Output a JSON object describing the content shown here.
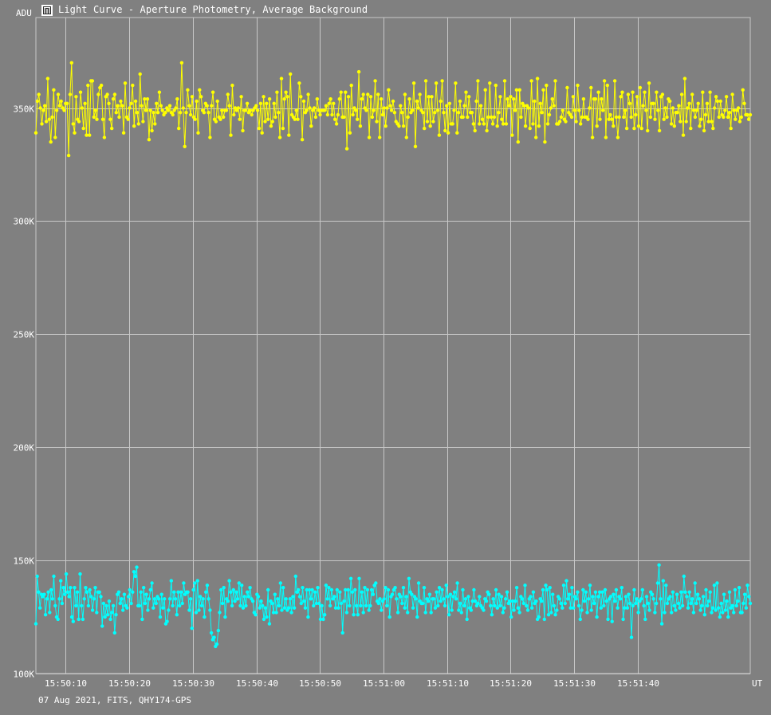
{
  "window": {
    "title": "Light Curve - Aperture Photometry, Average Background",
    "icon": "light-curve-app-icon"
  },
  "footer": {
    "info": "07 Aug 2021, FITS, QHY174-GPS"
  },
  "colors": {
    "background": "#808080",
    "grid": "#c8c8c8",
    "text": "#ffffff",
    "series_target": "#ffff00",
    "series_comparison": "#00ffff"
  },
  "chart_data": {
    "type": "line",
    "ylabel": "ADU",
    "xlabel": "UT",
    "ylim": [
      100000,
      390000
    ],
    "y_ticks": [
      {
        "value": 100000,
        "label": "100K"
      },
      {
        "value": 150000,
        "label": "150K"
      },
      {
        "value": 200000,
        "label": "200K"
      },
      {
        "value": 250000,
        "label": "250K"
      },
      {
        "value": 300000,
        "label": "300K"
      },
      {
        "value": 350000,
        "label": "350K"
      }
    ],
    "xlim": [
      "15:50:05.3",
      "15:51:57.7"
    ],
    "x_ticks": [
      "15:50:10",
      "15:50:20",
      "15:50:30",
      "15:50:40",
      "15:50:50",
      "15:51:00",
      "15:51:10",
      "15:51:20",
      "15:51:30",
      "15:51:40"
    ],
    "grid": true,
    "markers": true,
    "series": [
      {
        "color": "#ffff00",
        "x_start": "15:50:05.3",
        "x_end": "15:51:57.7",
        "values": [
          339000,
          353000,
          356000,
          350000,
          343000,
          349000,
          351000,
          344000,
          363000,
          345000,
          335000,
          346000,
          358000,
          337000,
          349000,
          356000,
          351000,
          353000,
          350000,
          349000,
          352000,
          352000,
          329000,
          356000,
          370000,
          343000,
          339000,
          355000,
          345000,
          344000,
          357000,
          350000,
          341000,
          352000,
          338000,
          360000,
          338000,
          362000,
          362000,
          346000,
          349000,
          345000,
          356000,
          359000,
          360000,
          345000,
          337000,
          355000,
          356000,
          352000,
          345000,
          341000,
          354000,
          356000,
          348000,
          351000,
          346000,
          353000,
          351000,
          339000,
          361000,
          346000,
          345000,
          350000,
          352000,
          360000,
          342000,
          353000,
          348000,
          343000,
          365000,
          351000,
          344000,
          354000,
          349000,
          354000,
          336000,
          349000,
          340000,
          348000,
          343000,
          352000,
          348000,
          357000,
          351000,
          349000,
          347000,
          348000,
          350000,
          349000,
          351000,
          348000,
          347000,
          349000,
          350000,
          354000,
          341000,
          348000,
          370000,
          350000,
          333000,
          348000,
          358000,
          351000,
          347000,
          355000,
          346000,
          345000,
          353000,
          339000,
          358000,
          355000,
          349000,
          348000,
          352000,
          351000,
          348000,
          337000,
          351000,
          357000,
          345000,
          344000,
          353000,
          346000,
          345000,
          349000,
          346000,
          349000,
          349000,
          356000,
          351000,
          338000,
          360000,
          347000,
          350000,
          349000,
          350000,
          345000,
          355000,
          340000,
          349000,
          349000,
          352000,
          348000,
          349000,
          347000,
          349000,
          350000,
          351000,
          349000,
          341000,
          352000,
          339000,
          355000,
          344000,
          352000,
          345000,
          354000,
          342000,
          344000,
          352000,
          346000,
          357000,
          348000,
          337000,
          363000,
          341000,
          354000,
          357000,
          355000,
          338000,
          365000,
          347000,
          346000,
          345000,
          349000,
          345000,
          361000,
          355000,
          336000,
          353000,
          348000,
          349000,
          356000,
          350000,
          342000,
          349000,
          350000,
          346000,
          354000,
          349000,
          347000,
          349000,
          349000,
          349000,
          351000,
          347000,
          352000,
          354000,
          347000,
          352000,
          345000,
          343000,
          347000,
          354000,
          357000,
          346000,
          346000,
          357000,
          332000,
          355000,
          339000,
          360000,
          347000,
          350000,
          349000,
          345000,
          366000,
          342000,
          354000,
          356000,
          350000,
          349000,
          356000,
          337000,
          355000,
          346000,
          349000,
          362000,
          344000,
          356000,
          337000,
          354000,
          347000,
          350000,
          342000,
          350000,
          358000,
          351000,
          349000,
          353000,
          348000,
          344000,
          343000,
          342000,
          351000,
          348000,
          342000,
          356000,
          337000,
          346000,
          354000,
          348000,
          349000,
          361000,
          333000,
          353000,
          350000,
          356000,
          349000,
          348000,
          341000,
          362000,
          344000,
          355000,
          342000,
          355000,
          344000,
          348000,
          361000,
          349000,
          338000,
          353000,
          362000,
          348000,
          340000,
          351000,
          339000,
          352000,
          343000,
          343000,
          349000,
          361000,
          339000,
          348000,
          353000,
          346000,
          346000,
          351000,
          357000,
          346000,
          355000,
          348000,
          348000,
          343000,
          340000,
          353000,
          362000,
          343000,
          351000,
          345000,
          343000,
          358000,
          340000,
          346000,
          361000,
          346000,
          343000,
          346000,
          360000,
          342000,
          348000,
          355000,
          345000,
          343000,
          362000,
          343000,
          354000,
          351000,
          355000,
          338000,
          354000,
          349000,
          358000,
          335000,
          358000,
          346000,
          352000,
          351000,
          342000,
          351000,
          350000,
          341000,
          362000,
          343000,
          353000,
          337000,
          363000,
          342000,
          352000,
          348000,
          358000,
          335000,
          360000,
          343000,
          347000,
          350000,
          354000,
          351000,
          362000,
          343000,
          343000,
          344000,
          346000,
          349000,
          345000,
          344000,
          359000,
          348000,
          347000,
          346000,
          355000,
          349000,
          344000,
          360000,
          349000,
          343000,
          346000,
          354000,
          346000,
          346000,
          345000,
          350000,
          359000,
          337000,
          354000,
          354000,
          342000,
          357000,
          345000,
          354000,
          349000,
          362000,
          337000,
          360000,
          345000,
          347000,
          345000,
          342000,
          362000,
          346000,
          337000,
          346000,
          355000,
          357000,
          346000,
          349000,
          341000,
          356000,
          352000,
          346000,
          357000,
          341000,
          347000,
          355000,
          342000,
          359000,
          341000,
          351000,
          357000,
          349000,
          340000,
          361000,
          346000,
          352000,
          352000,
          345000,
          357000,
          349000,
          340000,
          355000,
          356000,
          345000,
          350000,
          346000,
          354000,
          353000,
          343000,
          350000,
          342000,
          348000,
          348000,
          351000,
          344000,
          356000,
          338000,
          363000,
          344000,
          350000,
          352000,
          341000,
          356000,
          349000,
          346000,
          349000,
          352000,
          342000,
          345000,
          357000,
          340000,
          347000,
          352000,
          344000,
          357000,
          344000,
          341000,
          350000,
          355000,
          353000,
          346000,
          353000,
          347000,
          346000,
          349000,
          355000,
          346000,
          348000,
          341000,
          356000,
          349000,
          345000,
          349000,
          350000,
          344000,
          346000,
          358000,
          352000,
          347000,
          347000,
          345000,
          347000
        ]
      },
      {
        "color": "#00ffff",
        "x_start": "15:50:05.3",
        "x_end": "15:51:57.7",
        "values": [
          122000,
          143000,
          136000,
          129000,
          135000,
          134000,
          135000,
          126000,
          133000,
          136000,
          127000,
          137000,
          133000,
          143000,
          130000,
          125000,
          124000,
          133000,
          141000,
          131000,
          138000,
          135000,
          144000,
          136000,
          134000,
          138000,
          125000,
          123000,
          138000,
          130000,
          136000,
          124000,
          144000,
          130000,
          124000,
          133000,
          138000,
          136000,
          130000,
          137000,
          134000,
          128000,
          133000,
          138000,
          127000,
          136000,
          136000,
          134000,
          121000,
          131000,
          125000,
          130000,
          126000,
          132000,
          124000,
          127000,
          130000,
          118000,
          126000,
          135000,
          136000,
          131000,
          133000,
          128000,
          135000,
          130000,
          129000,
          134000,
          137000,
          131000,
          136000,
          145000,
          143000,
          147000,
          130000,
          130000,
          136000,
          124000,
          138000,
          131000,
          135000,
          128000,
          133000,
          137000,
          140000,
          129000,
          133000,
          131000,
          134000,
          133000,
          125000,
          135000,
          129000,
          133000,
          122000,
          123000,
          128000,
          133000,
          141000,
          130000,
          136000,
          133000,
          126000,
          136000,
          130000,
          136000,
          131000,
          140000,
          135000,
          136000,
          136000,
          128000,
          133000,
          120000,
          137000,
          140000,
          127000,
          141000,
          128000,
          134000,
          130000,
          133000,
          125000,
          136000,
          139000,
          133000,
          128000,
          118000,
          115000,
          116000,
          112000,
          113000,
          119000,
          127000,
          137000,
          131000,
          138000,
          125000,
          133000,
          132000,
          141000,
          136000,
          130000,
          137000,
          132000,
          136000,
          133000,
          140000,
          130000,
          139000,
          129000,
          134000,
          130000,
          136000,
          134000,
          138000,
          133000,
          132000,
          127000,
          126000,
          135000,
          134000,
          129000,
          132000,
          130000,
          124000,
          129000,
          125000,
          137000,
          122000,
          132000,
          131000,
          127000,
          135000,
          127000,
          133000,
          130000,
          140000,
          128000,
          138000,
          129000,
          133000,
          128000,
          129000,
          133000,
          127000,
          134000,
          129000,
          143000,
          136000,
          137000,
          134000,
          131000,
          138000,
          132000,
          129000,
          137000,
          125000,
          137000,
          133000,
          137000,
          130000,
          136000,
          131000,
          138000,
          131000,
          124000,
          130000,
          124000,
          126000,
          139000,
          133000,
          138000,
          130000,
          137000,
          133000,
          134000,
          129000,
          137000,
          129000,
          136000,
          131000,
          118000,
          132000,
          137000,
          127000,
          137000,
          130000,
          142000,
          136000,
          126000,
          137000,
          130000,
          126000,
          142000,
          130000,
          136000,
          127000,
          138000,
          130000,
          137000,
          128000,
          130000,
          137000,
          135000,
          139000,
          140000,
          132000,
          131000,
          133000,
          128000,
          132000,
          133000,
          138000,
          130000,
          137000,
          125000,
          134000,
          135000,
          137000,
          138000,
          133000,
          127000,
          135000,
          134000,
          131000,
          138000,
          129000,
          134000,
          127000,
          142000,
          136000,
          135000,
          129000,
          134000,
          133000,
          125000,
          140000,
          132000,
          131000,
          131000,
          138000,
          127000,
          133000,
          132000,
          135000,
          127000,
          133000,
          133000,
          129000,
          136000,
          130000,
          138000,
          132000,
          137000,
          133000,
          130000,
          139000,
          134000,
          126000,
          135000,
          128000,
          134000,
          136000,
          133000,
          140000,
          128000,
          131000,
          127000,
          137000,
          130000,
          133000,
          124000,
          134000,
          129000,
          128000,
          132000,
          137000,
          132000,
          130000,
          131000,
          134000,
          130000,
          129000,
          128000,
          133000,
          132000,
          136000,
          135000,
          130000,
          126000,
          133000,
          130000,
          137000,
          129000,
          135000,
          130000,
          134000,
          127000,
          129000,
          133000,
          136000,
          131000,
          132000,
          125000,
          132000,
          128000,
          132000,
          138000,
          129000,
          127000,
          134000,
          133000,
          131000,
          139000,
          130000,
          128000,
          133000,
          134000,
          129000,
          136000,
          131000,
          132000,
          124000,
          125000,
          133000,
          132000,
          137000,
          124000,
          139000,
          137000,
          126000,
          138000,
          127000,
          135000,
          130000,
          126000,
          128000,
          134000,
          133000,
          131000,
          129000,
          139000,
          131000,
          141000,
          133000,
          135000,
          129000,
          138000,
          129000,
          134000,
          133000,
          136000,
          130000,
          124000,
          128000,
          137000,
          132000,
          136000,
          127000,
          133000,
          139000,
          128000,
          134000,
          131000,
          136000,
          125000,
          134000,
          136000,
          129000,
          136000,
          130000,
          137000,
          132000,
          124000,
          133000,
          134000,
          123000,
          135000,
          132000,
          137000,
          129000,
          134000,
          133000,
          138000,
          124000,
          129000,
          134000,
          129000,
          135000,
          131000,
          116000,
          130000,
          137000,
          131000,
          133000,
          127000,
          132000,
          133000,
          137000,
          130000,
          124000,
          134000,
          131000,
          128000,
          136000,
          135000,
          133000,
          127000,
          131000,
          140000,
          148000,
          133000,
          122000,
          141000,
          127000,
          139000,
          131000,
          133000,
          134000,
          127000,
          136000,
          130000,
          128000,
          135000,
          131000,
          129000,
          136000,
          130000,
          143000,
          136000,
          134000,
          129000,
          136000,
          131000,
          133000,
          127000,
          140000,
          131000,
          135000,
          133000,
          128000,
          130000,
          134000,
          126000,
          137000,
          130000,
          132000,
          136000,
          127000,
          129000,
          139000,
          128000,
          140000,
          129000,
          125000,
          131000,
          127000,
          135000,
          128000,
          132000,
          125000,
          136000,
          129000,
          130000,
          127000,
          137000,
          130000,
          132000,
          138000,
          127000,
          127000,
          131000,
          135000,
          129000,
          139000,
          134000,
          131000
        ]
      }
    ]
  }
}
